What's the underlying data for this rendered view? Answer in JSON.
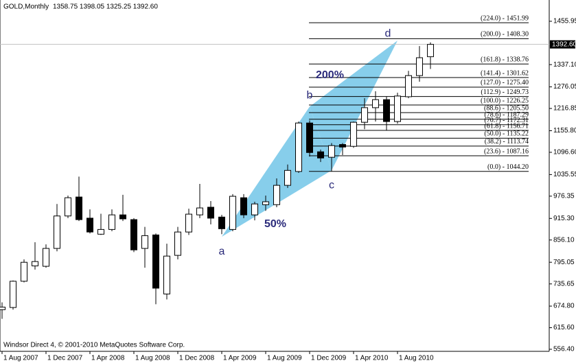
{
  "chart_data": {
    "type": "candlestick",
    "title": "GOLD,Monthly",
    "ohlc_text": "1358.75 1398.05 1325.25 1392.60",
    "footer": "Windsor Direct 4, © 2001-2010 MetaQuotes Software Corp.",
    "categories": [
      "1 Aug 2007",
      null,
      null,
      null,
      "1 Dec 2007",
      null,
      null,
      null,
      "1 Apr 2008",
      null,
      null,
      null,
      "1 Aug 2008",
      null,
      null,
      null,
      "1 Dec 2008",
      null,
      null,
      null,
      "1 Apr 2009",
      null,
      null,
      null,
      "1 Aug 2009",
      null,
      null,
      null,
      "1 Dec 2009",
      null,
      null,
      null,
      "1 Apr 2010",
      null,
      null,
      null,
      "1 Aug 2010",
      null,
      null,
      null
    ],
    "candles": [
      {
        "o": 665,
        "h": 685,
        "l": 640,
        "c": 672
      },
      {
        "o": 671,
        "h": 745,
        "l": 665,
        "c": 743
      },
      {
        "o": 743,
        "h": 803,
        "l": 740,
        "c": 795
      },
      {
        "o": 785,
        "h": 850,
        "l": 775,
        "c": 797
      },
      {
        "o": 784,
        "h": 844,
        "l": 780,
        "c": 833
      },
      {
        "o": 833,
        "h": 955,
        "l": 825,
        "c": 922
      },
      {
        "o": 922,
        "h": 978,
        "l": 916,
        "c": 972
      },
      {
        "o": 974,
        "h": 1030,
        "l": 908,
        "c": 912
      },
      {
        "o": 916,
        "h": 940,
        "l": 874,
        "c": 878
      },
      {
        "o": 872,
        "h": 928,
        "l": 870,
        "c": 885
      },
      {
        "o": 885,
        "h": 940,
        "l": 880,
        "c": 925
      },
      {
        "o": 925,
        "h": 980,
        "l": 908,
        "c": 914
      },
      {
        "o": 912,
        "h": 916,
        "l": 823,
        "c": 829
      },
      {
        "o": 833,
        "h": 892,
        "l": 780,
        "c": 868
      },
      {
        "o": 870,
        "h": 874,
        "l": 680,
        "c": 724
      },
      {
        "o": 708,
        "h": 846,
        "l": 693,
        "c": 812
      },
      {
        "o": 814,
        "h": 892,
        "l": 803,
        "c": 878
      },
      {
        "o": 878,
        "h": 942,
        "l": 870,
        "c": 927
      },
      {
        "o": 925,
        "h": 1010,
        "l": 916,
        "c": 944
      },
      {
        "o": 946,
        "h": 963,
        "l": 899,
        "c": 916
      },
      {
        "o": 919,
        "h": 925,
        "l": 872,
        "c": 887
      },
      {
        "o": 885,
        "h": 982,
        "l": 880,
        "c": 976
      },
      {
        "o": 972,
        "h": 982,
        "l": 916,
        "c": 925
      },
      {
        "o": 925,
        "h": 961,
        "l": 910,
        "c": 955
      },
      {
        "o": 953,
        "h": 978,
        "l": 936,
        "c": 961
      },
      {
        "o": 953,
        "h": 1025,
        "l": 946,
        "c": 1006
      },
      {
        "o": 1006,
        "h": 1063,
        "l": 999,
        "c": 1047
      },
      {
        "o": 1044,
        "h": 1181,
        "l": 1040,
        "c": 1177
      },
      {
        "o": 1177,
        "h": 1184,
        "l": 1085,
        "c": 1096
      },
      {
        "o": 1098,
        "h": 1104,
        "l": 1070,
        "c": 1081
      },
      {
        "o": 1083,
        "h": 1122,
        "l": 1044,
        "c": 1115
      },
      {
        "o": 1118,
        "h": 1122,
        "l": 1089,
        "c": 1111
      },
      {
        "o": 1113,
        "h": 1181,
        "l": 1109,
        "c": 1179
      },
      {
        "o": 1179,
        "h": 1245,
        "l": 1160,
        "c": 1219
      },
      {
        "o": 1219,
        "h": 1264,
        "l": 1181,
        "c": 1241
      },
      {
        "o": 1241,
        "h": 1250,
        "l": 1157,
        "c": 1181
      },
      {
        "o": 1181,
        "h": 1260,
        "l": 1175,
        "c": 1251
      },
      {
        "o": 1249,
        "h": 1320,
        "l": 1245,
        "c": 1307
      },
      {
        "o": 1307,
        "h": 1388,
        "l": 1290,
        "c": 1356
      },
      {
        "o": 1358.75,
        "h": 1398.05,
        "l": 1325.25,
        "c": 1392.6
      }
    ],
    "up_color": "#ffffff",
    "down_color": "#000000",
    "ylim": [
      550.75,
      1514.3
    ],
    "yticks": [
      {
        "value": 556.4,
        "label": "556.40"
      },
      {
        "value": 615.6,
        "label": "615.60"
      },
      {
        "value": 674.8,
        "label": "674.80"
      },
      {
        "value": 735.65,
        "label": "735.65"
      },
      {
        "value": 795.05,
        "label": "795.05"
      },
      {
        "value": 856.1,
        "label": "856.10"
      },
      {
        "value": 915.3,
        "label": "915.30"
      },
      {
        "value": 976.35,
        "label": "976.35"
      },
      {
        "value": 1035.55,
        "label": "1035.55"
      },
      {
        "value": 1096.6,
        "label": "1096.60"
      },
      {
        "value": 1155.8,
        "label": "1155.80"
      },
      {
        "value": 1216.85,
        "label": "1216.85"
      },
      {
        "value": 1276.05,
        "label": "1276.05"
      },
      {
        "value": 1337.1,
        "label": "1337.10"
      },
      {
        "value": 1455.95,
        "label": "1455.95"
      }
    ],
    "last": {
      "value": 1392.6,
      "label": "1392.60"
    },
    "levels": [
      {
        "value": 1451.99,
        "label": "(224.0) - 1451.99"
      },
      {
        "value": 1408.3,
        "label": "(200.0) - 1408.30"
      },
      {
        "value": 1338.76,
        "label": "(161.8) - 1338.76"
      },
      {
        "value": 1301.62,
        "label": "(141.4) - 1301.62"
      },
      {
        "value": 1275.4,
        "label": "(127.0) - 1275.40"
      },
      {
        "value": 1249.73,
        "label": "(112.9) - 1249.73"
      },
      {
        "value": 1226.25,
        "label": "(100.0) - 1226.25"
      },
      {
        "value": 1205.5,
        "label": "(88.6) - 1205.50"
      },
      {
        "value": 1187.29,
        "label": "(78.6) - 1187.29"
      },
      {
        "value": 1172.31,
        "label": "(70.7) - 1172.31"
      },
      {
        "value": 1156.71,
        "label": "(61.8) - 1156.71"
      },
      {
        "value": 1135.22,
        "label": "(50.0) - 1135.22"
      },
      {
        "value": 1113.74,
        "label": "(38.2) - 1113.74"
      },
      {
        "value": 1087.16,
        "label": "(23.6) - 1087.16"
      },
      {
        "value": 1044.2,
        "label": "(0.0) - 1044.20"
      }
    ],
    "pattern": {
      "color": "#87ceeb",
      "points": [
        {
          "label": "a",
          "index": 20,
          "value": 865
        },
        {
          "label": "b",
          "index": 28,
          "value": 1222
        },
        {
          "label": "c",
          "index": 30,
          "value": 1047
        },
        {
          "label": "d",
          "index": 36,
          "value": 1403
        }
      ],
      "ratios": [
        "50%",
        "200%"
      ]
    }
  }
}
